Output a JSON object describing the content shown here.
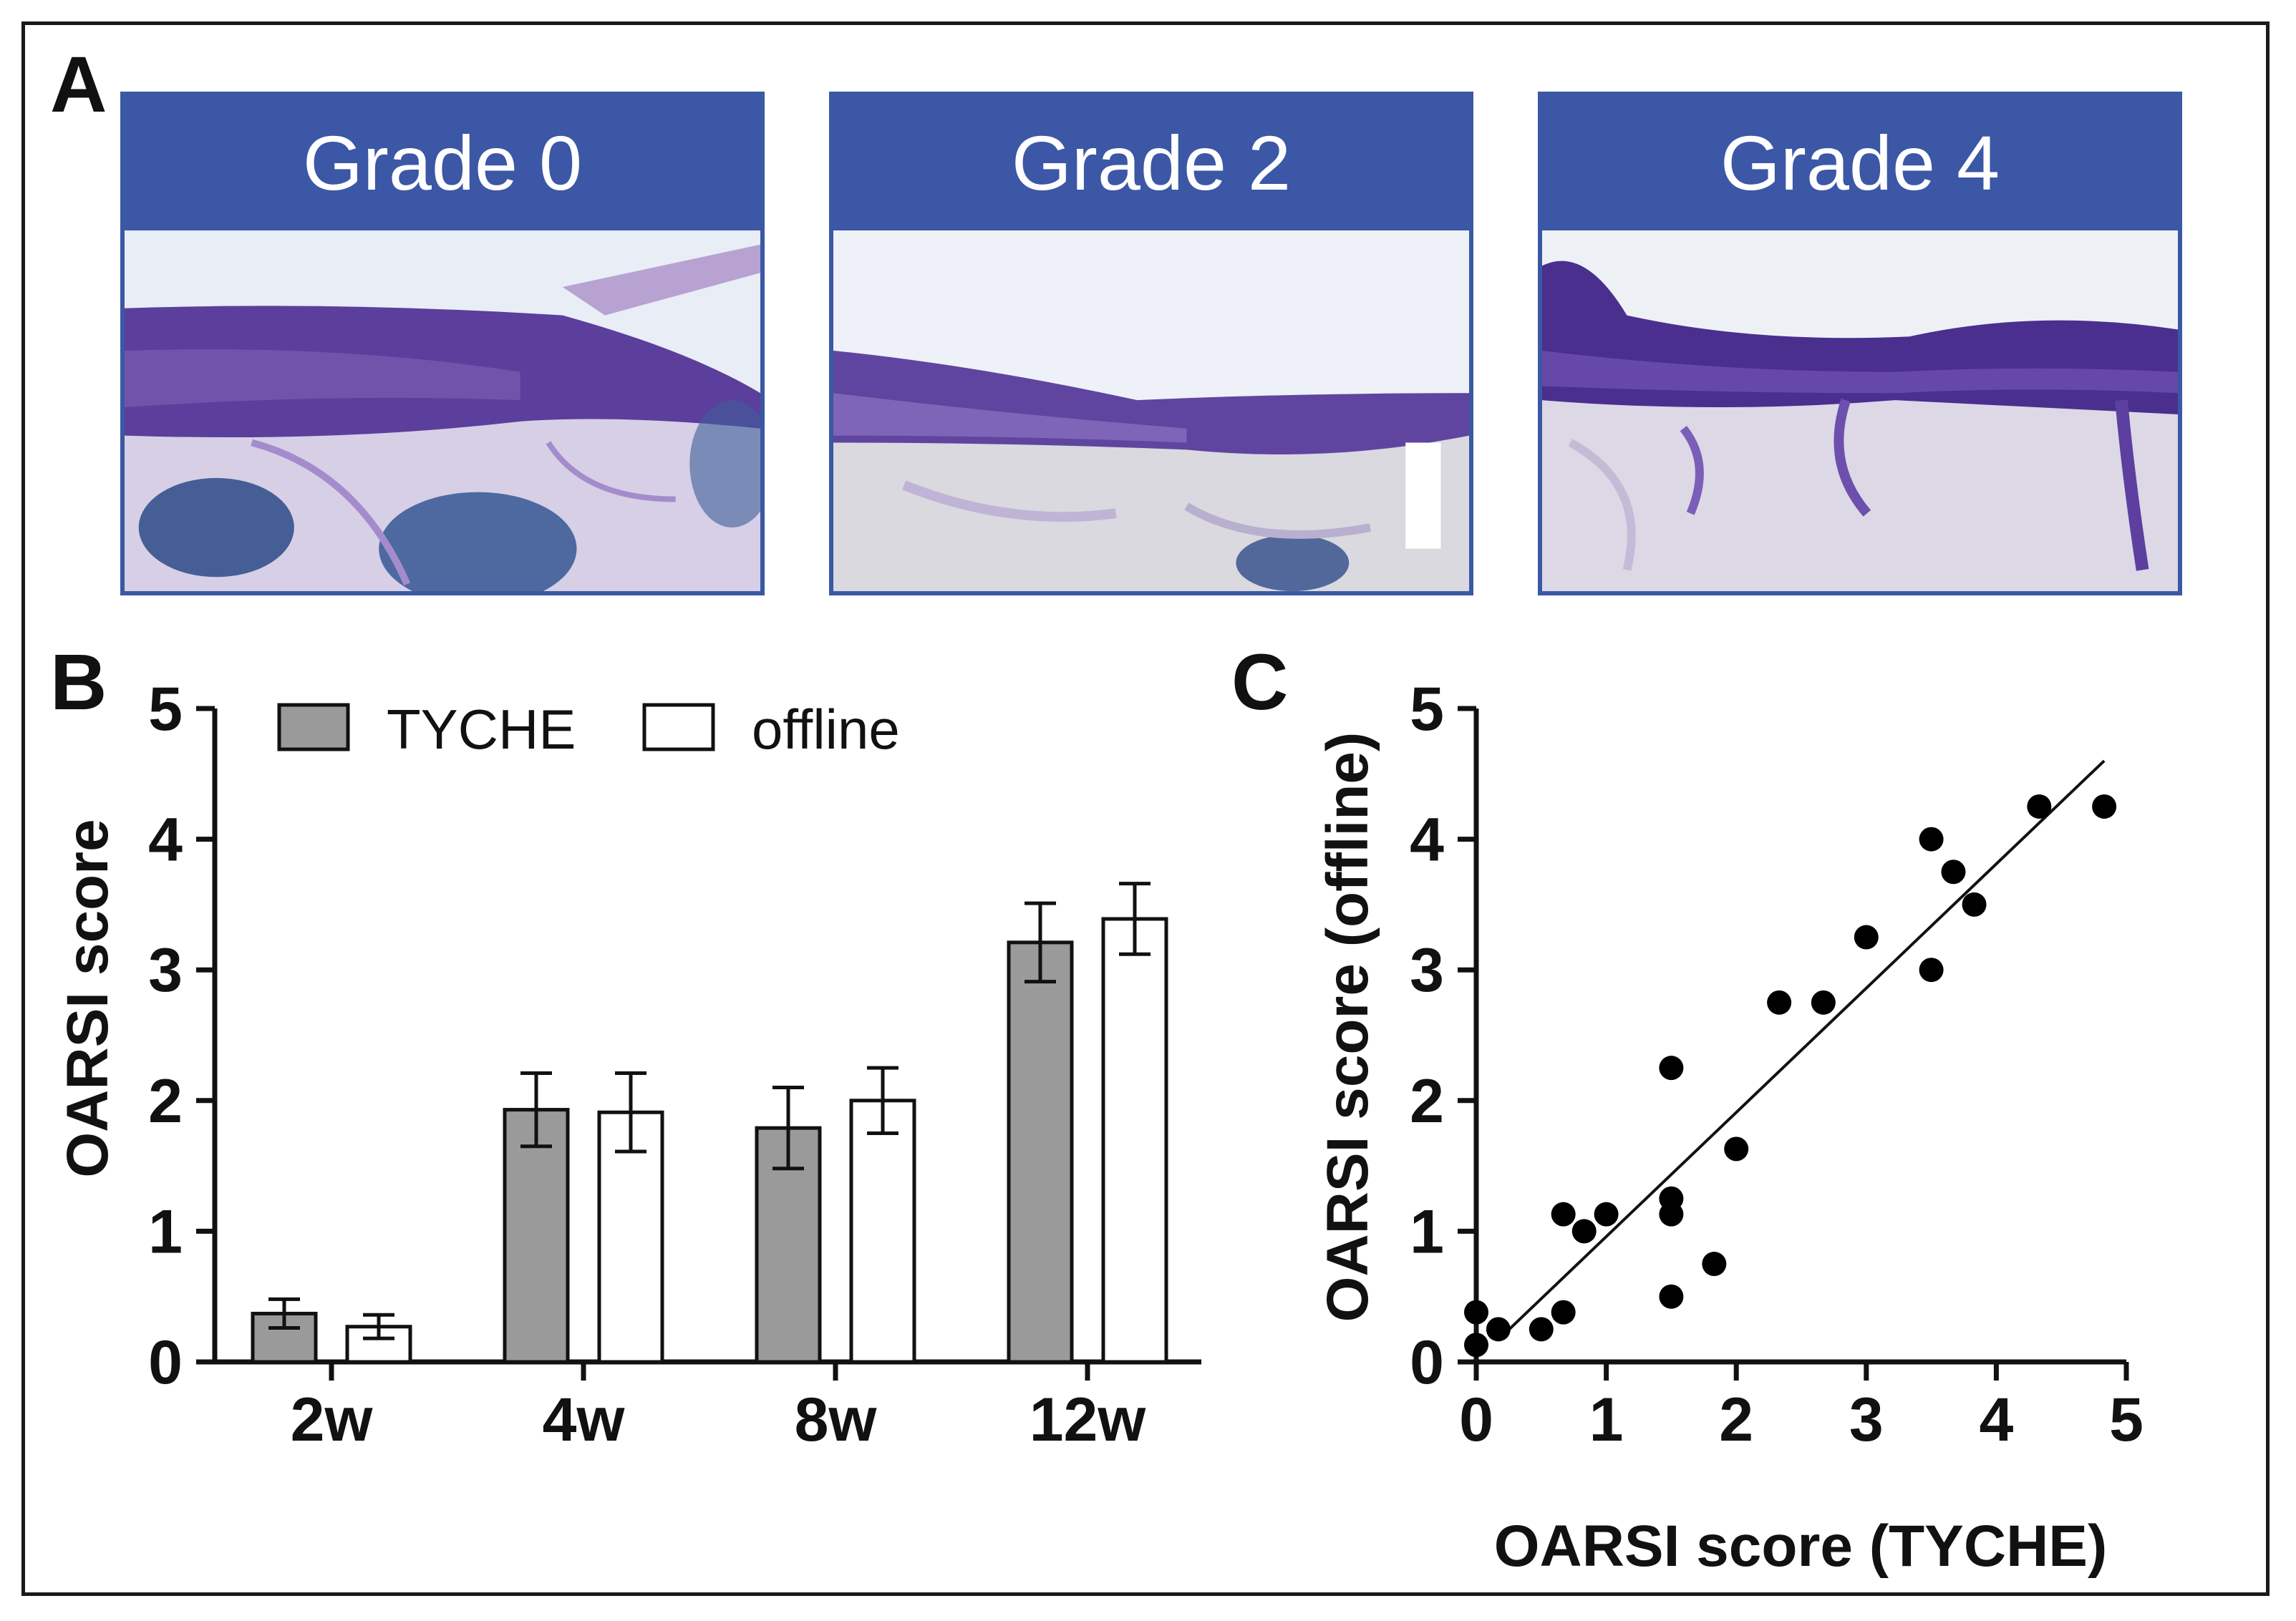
{
  "panel_labels": {
    "a": "A",
    "b": "B",
    "c": "C"
  },
  "histology": [
    {
      "title": "Grade 0"
    },
    {
      "title": "Grade 2"
    },
    {
      "title": "Grade 4"
    }
  ],
  "colors": {
    "header_blue": "#3b57a5",
    "tyche_fill": "#9a9a9a",
    "offline_fill": "#ffffff",
    "stain_purple": "#5c3e9c"
  },
  "chart_data": [
    {
      "type": "bar",
      "title": "",
      "xlabel": "",
      "ylabel": "OARSI score",
      "ylim": [
        0,
        5
      ],
      "yticks": [
        "0",
        "1",
        "2",
        "3",
        "4",
        "5"
      ],
      "categories": [
        "2w",
        "4w",
        "8w",
        "12w"
      ],
      "series": [
        {
          "name": "TYCHE",
          "values": [
            0.37,
            1.93,
            1.79,
            3.21
          ],
          "errors": [
            0.11,
            0.28,
            0.31,
            0.3
          ]
        },
        {
          "name": "offline",
          "values": [
            0.27,
            1.91,
            2.0,
            3.39
          ],
          "errors": [
            0.09,
            0.3,
            0.25,
            0.27
          ]
        }
      ],
      "legend": "top"
    },
    {
      "type": "scatter",
      "title": "",
      "xlabel": "OARSI score (TYCHE)",
      "ylabel": "OARSI score (offline)",
      "xlim": [
        0,
        5
      ],
      "ylim": [
        0,
        5
      ],
      "xticks": [
        "0",
        "1",
        "2",
        "3",
        "4",
        "5"
      ],
      "yticks": [
        "0",
        "1",
        "2",
        "3",
        "4",
        "5"
      ],
      "points": [
        [
          0,
          0.13
        ],
        [
          0,
          0.38
        ],
        [
          0.17,
          0.25
        ],
        [
          0.5,
          0.25
        ],
        [
          0.67,
          0.38
        ],
        [
          0.67,
          1.13
        ],
        [
          0.83,
          1.0
        ],
        [
          1.0,
          1.13
        ],
        [
          1.5,
          0.5
        ],
        [
          1.5,
          1.13
        ],
        [
          1.5,
          1.25
        ],
        [
          1.5,
          2.25
        ],
        [
          1.83,
          0.75
        ],
        [
          2.0,
          1.63
        ],
        [
          2.33,
          2.75
        ],
        [
          2.67,
          2.75
        ],
        [
          3.0,
          3.25
        ],
        [
          3.5,
          3.0
        ],
        [
          3.5,
          4.0
        ],
        [
          3.67,
          3.75
        ],
        [
          3.83,
          3.5
        ],
        [
          4.33,
          4.25
        ],
        [
          4.83,
          4.25
        ]
      ],
      "fit_line": {
        "x": [
          0.17,
          4.83
        ],
        "y": [
          0.17,
          4.6
        ]
      }
    }
  ]
}
